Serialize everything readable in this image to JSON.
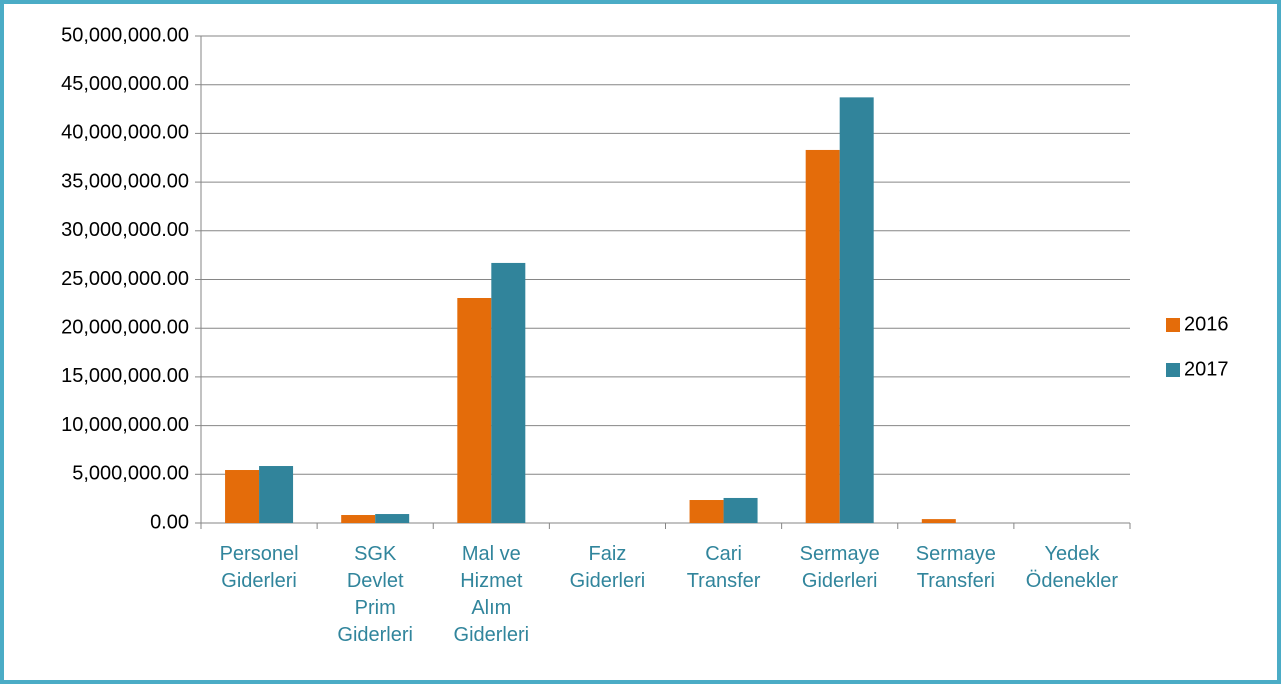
{
  "chart_data": {
    "type": "bar",
    "categories": [
      "Personel Giderleri",
      "SGK Devlet Prim Giderleri",
      "Mal ve Hizmet Alım Giderleri",
      "Faiz Giderleri",
      "Cari Transfer",
      "Sermaye Giderleri",
      "Sermaye Transferi",
      "Yedek Ödenekler"
    ],
    "series": [
      {
        "name": "2016",
        "color": "#e46c0a",
        "values": [
          5440000,
          820000,
          23100000,
          0,
          2360000,
          38300000,
          400000,
          0
        ]
      },
      {
        "name": "2017",
        "color": "#31849b",
        "values": [
          5850000,
          920000,
          26700000,
          0,
          2570000,
          43700000,
          0,
          0
        ]
      }
    ],
    "ylim": [
      0,
      50000000
    ],
    "yticks": [
      {
        "value": 0,
        "label": "0.00"
      },
      {
        "value": 5000000,
        "label": "5,000,000.00"
      },
      {
        "value": 10000000,
        "label": "10,000,000.00"
      },
      {
        "value": 15000000,
        "label": "15,000,000.00"
      },
      {
        "value": 20000000,
        "label": "20,000,000.00"
      },
      {
        "value": 25000000,
        "label": "25,000,000.00"
      },
      {
        "value": 30000000,
        "label": "30,000,000.00"
      },
      {
        "value": 35000000,
        "label": "35,000,000.00"
      },
      {
        "value": 40000000,
        "label": "40,000,000.00"
      },
      {
        "value": 45000000,
        "label": "45,000,000.00"
      },
      {
        "value": 50000000,
        "label": "50,000,000.00"
      }
    ],
    "grid": true,
    "legend": "right"
  }
}
